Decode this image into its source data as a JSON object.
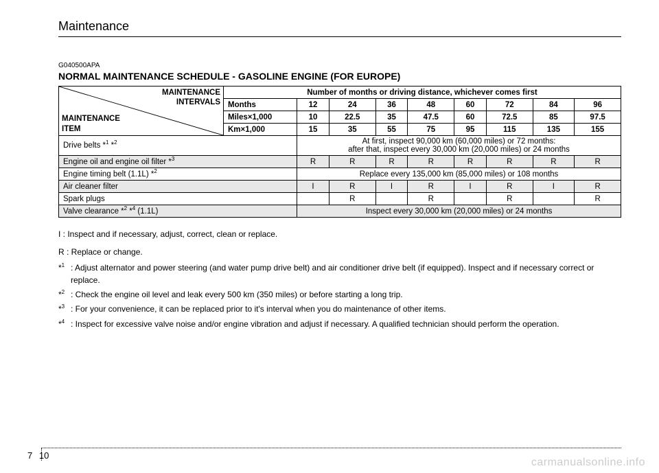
{
  "header": {
    "title": "Maintenance"
  },
  "doc_code": "G040500APA",
  "main_title": "NORMAL MAINTENANCE SCHEDULE - GASOLINE ENGINE (FOR EUROPE)",
  "table": {
    "diag_top": "MAINTENANCE\nINTERVALS",
    "diag_bottom": "MAINTENANCE\nITEM",
    "interval_header": "Number of months or driving distance, whichever comes first",
    "row_labels": [
      "Months",
      "Miles×1,000",
      "Km×1,000"
    ],
    "months": [
      "12",
      "24",
      "36",
      "48",
      "60",
      "72",
      "84",
      "96"
    ],
    "miles": [
      "10",
      "22.5",
      "35",
      "47.5",
      "60",
      "72.5",
      "85",
      "97.5"
    ],
    "km": [
      "15",
      "35",
      "55",
      "75",
      "95",
      "115",
      "135",
      "155"
    ],
    "items": [
      {
        "label_html": "Drive belts *<sup>1</sup> *<sup>2</sup>",
        "span_text": "At first, inspect 90,000 km (60,000 miles) or 72 months:\nafter that, inspect every 30,000 km (20,000 miles) or 24 months",
        "shaded": false
      },
      {
        "label_html": "Engine oil and engine oil filter *<sup>3</sup>",
        "cells": [
          "R",
          "R",
          "R",
          "R",
          "R",
          "R",
          "R",
          "R"
        ],
        "shaded": true
      },
      {
        "label_html": "Engine timing belt (1.1L) *<sup>2</sup>",
        "span_text": "Replace every 135,000 km (85,000 miles) or 108 months",
        "shaded": false
      },
      {
        "label_html": "Air cleaner filter",
        "cells": [
          "I",
          "R",
          "I",
          "R",
          "I",
          "R",
          "I",
          "R"
        ],
        "shaded": true
      },
      {
        "label_html": "Spark plugs",
        "cells": [
          "",
          "R",
          "",
          "R",
          "",
          "R",
          "",
          "R"
        ],
        "shaded": false
      },
      {
        "label_html": "Valve clearance *<sup>2</sup> *<sup>4</sup> (1.1L)",
        "span_text": "Inspect every 30,000 km (20,000 miles) or 24 months",
        "shaded": true
      }
    ]
  },
  "legend": {
    "I": "I   : Inspect and if necessary, adjust, correct, clean or replace.",
    "R": "R : Replace or change."
  },
  "footnotes": [
    {
      "marker_html": "*<sup>1</sup>",
      "text": ": Adjust alternator and power steering (and water pump drive belt) and air conditioner drive belt (if equipped). Inspect and if necessary correct or replace."
    },
    {
      "marker_html": "*<sup>2</sup>",
      "text": ": Check the engine oil level and leak every 500 km (350 miles) or before starting a long trip."
    },
    {
      "marker_html": "*<sup>3</sup>",
      "text": ": For your convenience, it can be replaced prior to it's interval when you do maintenance of other items."
    },
    {
      "marker_html": "*<sup>4</sup>",
      "text": ": Inspect for excessive valve noise and/or engine vibration and adjust if necessary. A qualified technician should perform the operation."
    }
  ],
  "page_number": {
    "section": "7",
    "page": "10"
  },
  "watermark": "carmanualsonline.info",
  "colors": {
    "shaded_bg": "#e8e8e8",
    "text": "#000000",
    "watermark": "#cccccc",
    "bg": "#ffffff"
  }
}
